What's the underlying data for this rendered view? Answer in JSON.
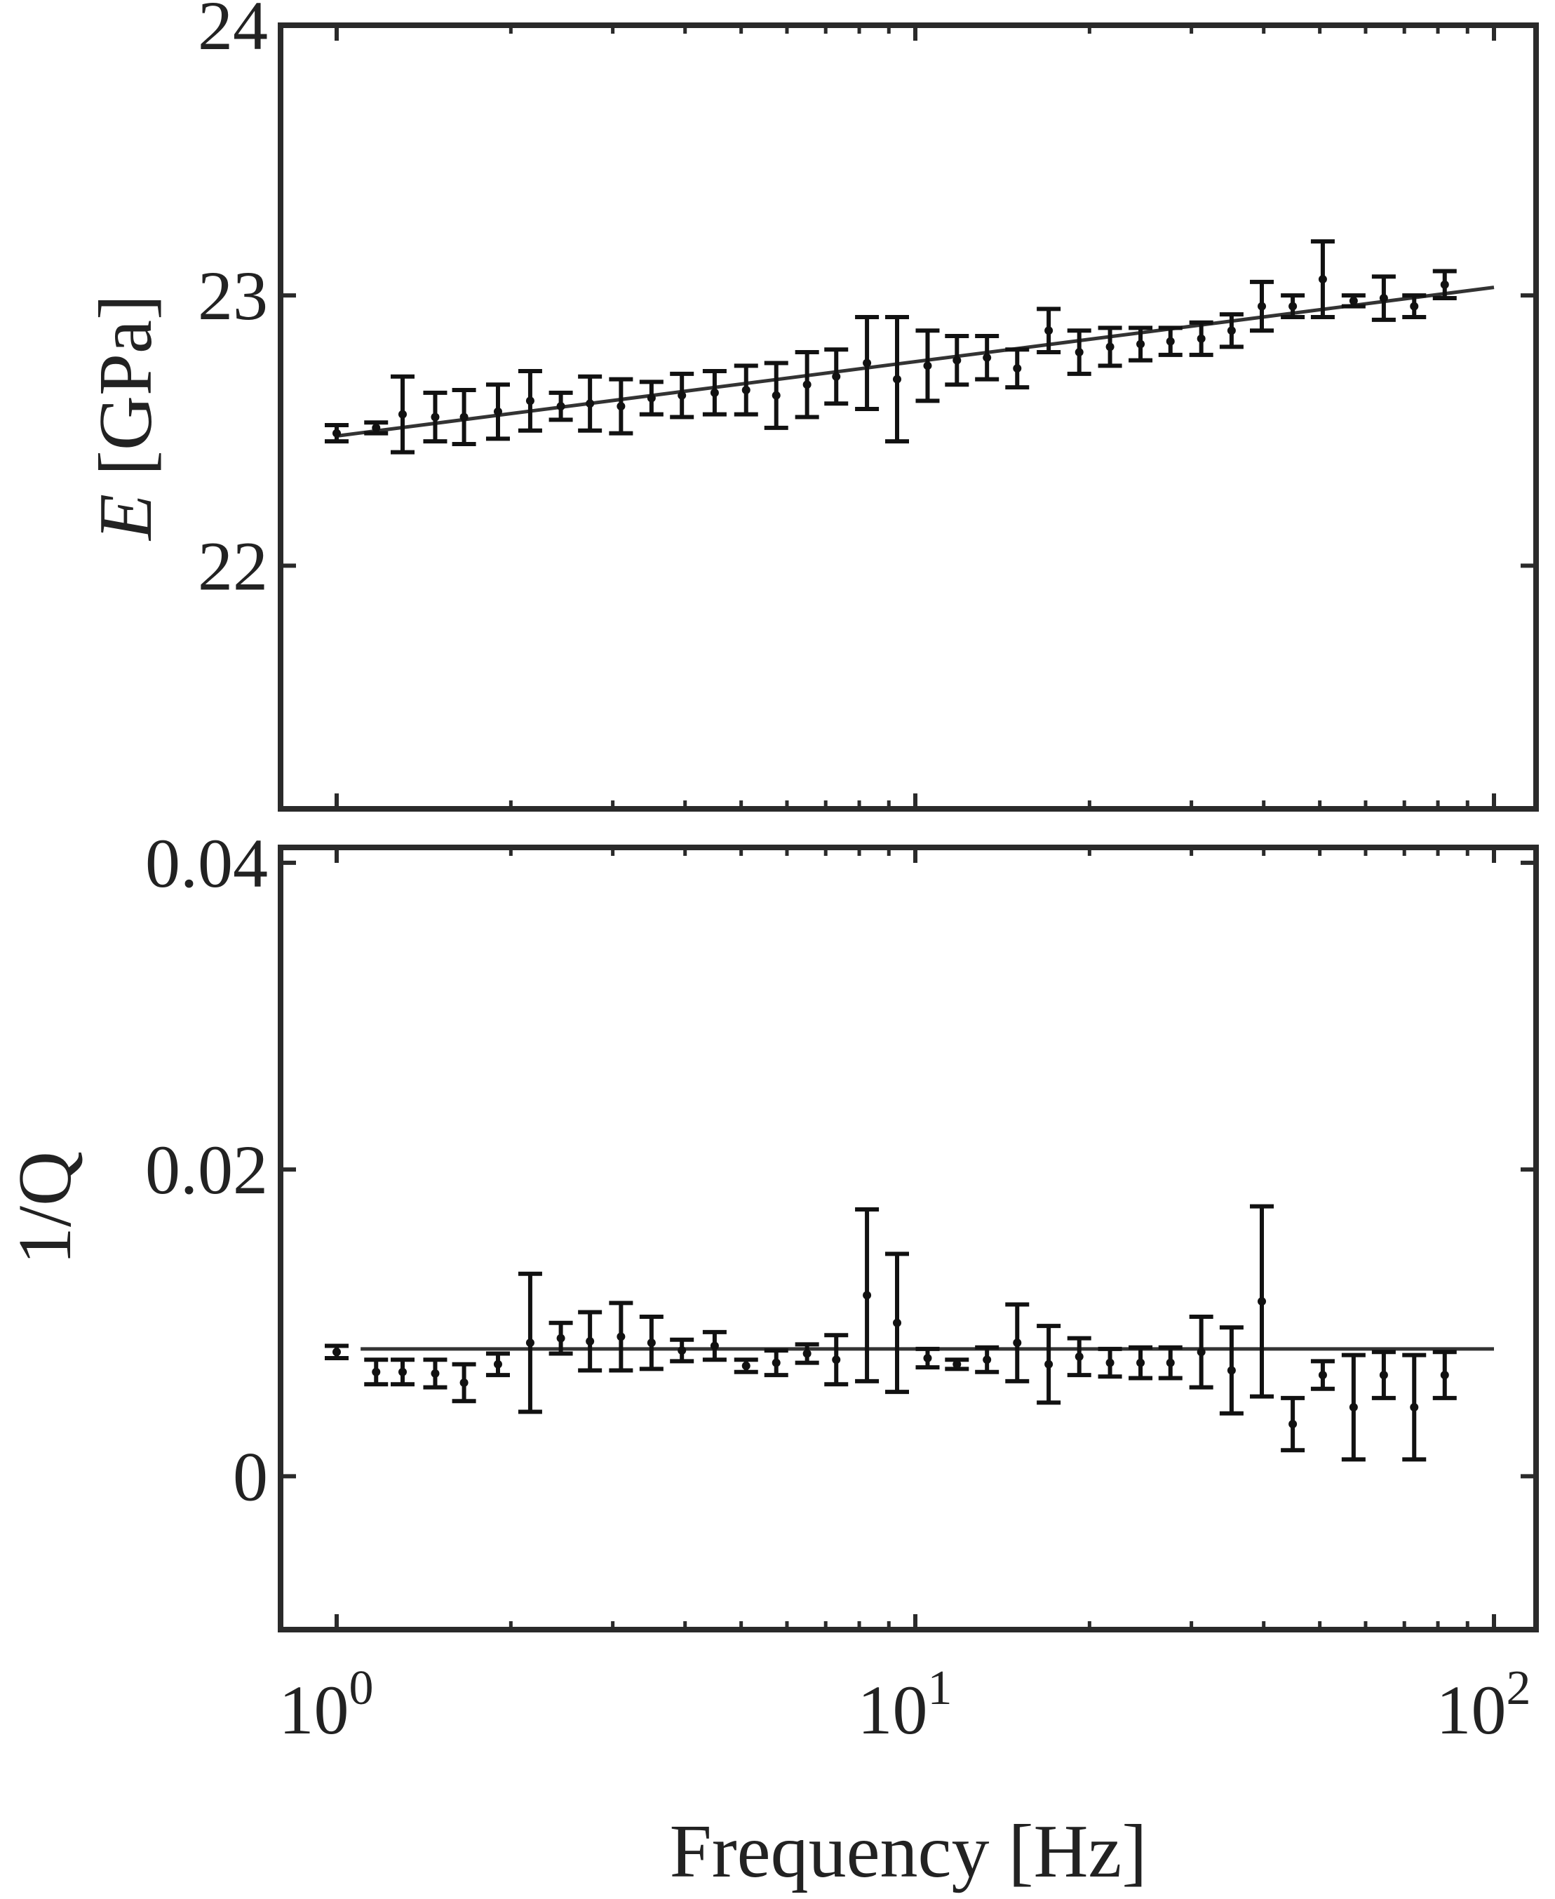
{
  "figure": {
    "xlabel": "Frequency [Hz]"
  },
  "chart_data": [
    {
      "type": "scatter",
      "panel": "top",
      "x_scale": "log",
      "xlim": [
        0.8,
        110
      ],
      "ylim": [
        21.1,
        24
      ],
      "ylabel_symbol": "E",
      "ylabel_unit": "[GPa]",
      "yticks": [
        22,
        23,
        24
      ],
      "ytick_labels": [
        "22",
        "23",
        "24"
      ],
      "grid": false,
      "x": [
        1.0,
        1.17,
        1.3,
        1.48,
        1.66,
        1.9,
        2.16,
        2.44,
        2.74,
        3.1,
        3.5,
        3.95,
        4.5,
        5.1,
        5.75,
        6.5,
        7.3,
        8.25,
        9.3,
        10.5,
        11.8,
        13.3,
        15.0,
        17.0,
        19.2,
        21.7,
        24.5,
        27.6,
        31.2,
        35.2,
        39.7,
        44.9,
        50.6,
        57.2,
        64.5,
        72.8,
        82.2
      ],
      "y": [
        22.49,
        22.51,
        22.56,
        22.55,
        22.55,
        22.57,
        22.61,
        22.59,
        22.6,
        22.59,
        22.62,
        22.63,
        22.64,
        22.65,
        22.63,
        22.67,
        22.7,
        22.75,
        22.69,
        22.74,
        22.76,
        22.77,
        22.73,
        22.87,
        22.79,
        22.81,
        22.82,
        22.83,
        22.84,
        22.87,
        22.96,
        22.96,
        23.06,
        22.98,
        22.99,
        22.96,
        23.04
      ],
      "error": [
        0.03,
        0.02,
        0.14,
        0.09,
        0.1,
        0.1,
        0.11,
        0.05,
        0.1,
        0.1,
        0.06,
        0.08,
        0.08,
        0.09,
        0.12,
        0.12,
        0.1,
        0.17,
        0.23,
        0.13,
        0.09,
        0.08,
        0.07,
        0.08,
        0.08,
        0.07,
        0.06,
        0.05,
        0.06,
        0.06,
        0.09,
        0.04,
        0.14,
        0.02,
        0.08,
        0.04,
        0.05
      ],
      "fit": {
        "x": [
          1.0,
          100
        ],
        "y": [
          22.48,
          23.03
        ]
      }
    },
    {
      "type": "scatter",
      "panel": "bottom",
      "x_scale": "log",
      "xlim": [
        0.8,
        110
      ],
      "ylim": [
        -0.01,
        0.041
      ],
      "ylabel": "1/Q",
      "yticks": [
        0,
        0.02,
        0.04
      ],
      "ytick_labels": [
        "0",
        "0.02",
        "0.04"
      ],
      "xticks": [
        1,
        10,
        100
      ],
      "xtick_base": "10",
      "xtick_exponents": [
        "0",
        "1",
        "2"
      ],
      "grid": false,
      "x": [
        1.0,
        1.17,
        1.3,
        1.48,
        1.66,
        1.9,
        2.16,
        2.44,
        2.74,
        3.1,
        3.5,
        3.95,
        4.5,
        5.1,
        5.75,
        6.5,
        7.3,
        8.25,
        9.3,
        10.5,
        11.8,
        13.3,
        15.0,
        17.0,
        19.2,
        21.7,
        24.5,
        27.6,
        31.2,
        35.2,
        39.7,
        44.9,
        50.6,
        57.2,
        64.5,
        72.8,
        82.2
      ],
      "y": [
        0.0081,
        0.0068,
        0.0068,
        0.0067,
        0.0061,
        0.0073,
        0.0087,
        0.009,
        0.0088,
        0.0091,
        0.0087,
        0.0082,
        0.0085,
        0.0072,
        0.0074,
        0.008,
        0.0076,
        0.0118,
        0.01,
        0.0077,
        0.0073,
        0.0076,
        0.0087,
        0.0073,
        0.0078,
        0.0074,
        0.0074,
        0.0074,
        0.0081,
        0.0069,
        0.0114,
        0.0034,
        0.0066,
        0.0045,
        0.0066,
        0.0045,
        0.0066
      ],
      "error": [
        0.0004,
        0.0008,
        0.0008,
        0.0009,
        0.0012,
        0.0007,
        0.0045,
        0.001,
        0.0019,
        0.0022,
        0.0017,
        0.0007,
        0.0009,
        0.0004,
        0.0008,
        0.0006,
        0.0016,
        0.0056,
        0.0045,
        0.0006,
        0.0003,
        0.0008,
        0.0025,
        0.0025,
        0.0012,
        0.0009,
        0.001,
        0.001,
        0.0023,
        0.0028,
        0.0062,
        0.0017,
        0.0009,
        0.0034,
        0.0015,
        0.0034,
        0.0015
      ],
      "fit": {
        "x": [
          1.1,
          100
        ],
        "y": [
          0.0083,
          0.0083
        ]
      }
    }
  ]
}
